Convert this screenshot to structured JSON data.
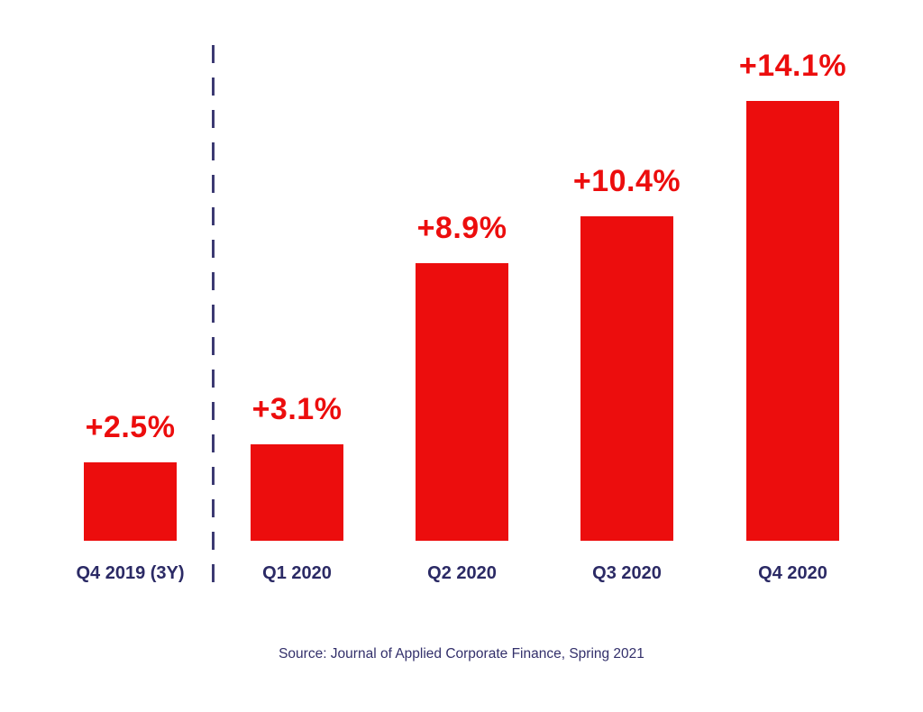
{
  "chart_data": {
    "type": "bar",
    "title": "",
    "xlabel": "",
    "ylabel": "",
    "categories": [
      "Q4 2019 (3Y)",
      "Q1 2020",
      "Q2 2020",
      "Q3 2020",
      "Q4 2020"
    ],
    "values": [
      2.5,
      3.1,
      8.9,
      10.4,
      14.1
    ],
    "data_labels": [
      "+2.5",
      "+3.1",
      "+8.9",
      "+10.4",
      "+14.1"
    ],
    "data_labels_full": [
      "+2.5%",
      "+3.1%",
      "+8.9%",
      "+10.4%",
      "+14.1%"
    ],
    "percent_sign": "%",
    "ylim": [
      0,
      14.5
    ],
    "grid": false,
    "legend": false,
    "bar_color": "#ec0d0d",
    "value_label_color": "#ec0d0d",
    "category_label_color": "#2b2a65",
    "separator_after_index": 0,
    "separator_color": "#3c3a72",
    "background_color": "#ffffff"
  },
  "source_note": "Source: Journal of Applied Corporate Finance, Spring 2021"
}
